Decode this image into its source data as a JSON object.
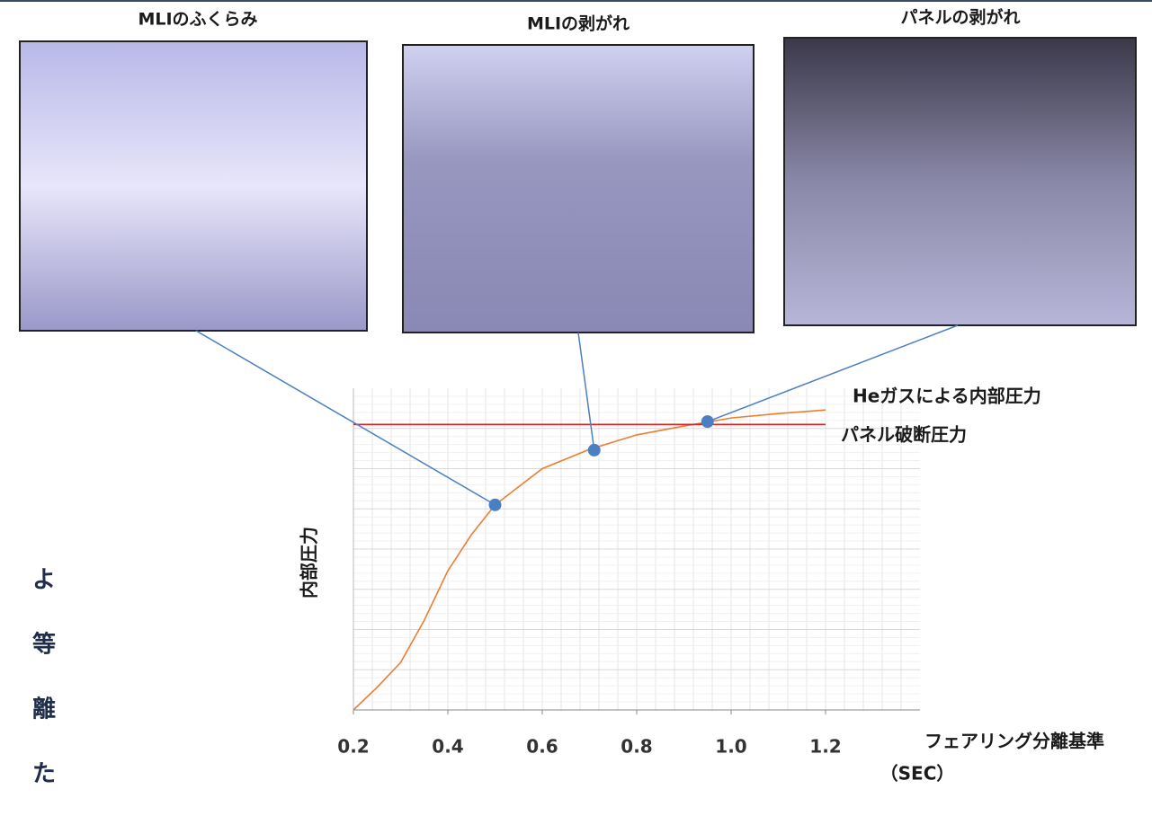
{
  "photos": [
    {
      "caption": "MLIのふくらみ"
    },
    {
      "caption": "MLIの剥がれ"
    },
    {
      "caption": "パネルの剥がれ"
    }
  ],
  "side_text": [
    "よ",
    "等",
    "離",
    "た"
  ],
  "chart_data": {
    "type": "line",
    "x": [
      0.2,
      0.25,
      0.3,
      0.35,
      0.4,
      0.45,
      0.5,
      0.6,
      0.7,
      0.8,
      0.9,
      1.0,
      1.1,
      1.2
    ],
    "series": [
      {
        "name": "Heガスによる内部圧力",
        "color": "#ed7d31",
        "values": [
          0,
          0.56,
          1.18,
          2.23,
          3.46,
          4.36,
          5.1,
          6.0,
          6.48,
          6.84,
          7.06,
          7.26,
          7.37,
          7.46
        ]
      },
      {
        "name": "パネル破断圧力",
        "color": "#e02020",
        "values": [
          7.1,
          7.1,
          7.1,
          7.1,
          7.1,
          7.1,
          7.1,
          7.1,
          7.1,
          7.1,
          7.1,
          7.1,
          7.1,
          7.1
        ]
      }
    ],
    "points": {
      "color": "#4a7fc1",
      "x": [
        0.5,
        0.71,
        0.95
      ],
      "y": [
        5.1,
        6.46,
        7.17
      ]
    },
    "y_label": "内部圧力",
    "x_label": [
      "フェアリング分離基準",
      "（SEC）"
    ],
    "xlim": [
      0.2,
      1.4
    ],
    "ylim": [
      0,
      8
    ],
    "xticks": [
      {
        "value": 0.2,
        "label": "0.2"
      },
      {
        "value": 0.4,
        "label": "0.4"
      },
      {
        "value": 0.6,
        "label": "0.6"
      },
      {
        "value": 0.8,
        "label": "0.8"
      },
      {
        "value": 1.0,
        "label": "1.0"
      },
      {
        "value": 1.2,
        "label": "1.2"
      }
    ],
    "grid": true
  }
}
